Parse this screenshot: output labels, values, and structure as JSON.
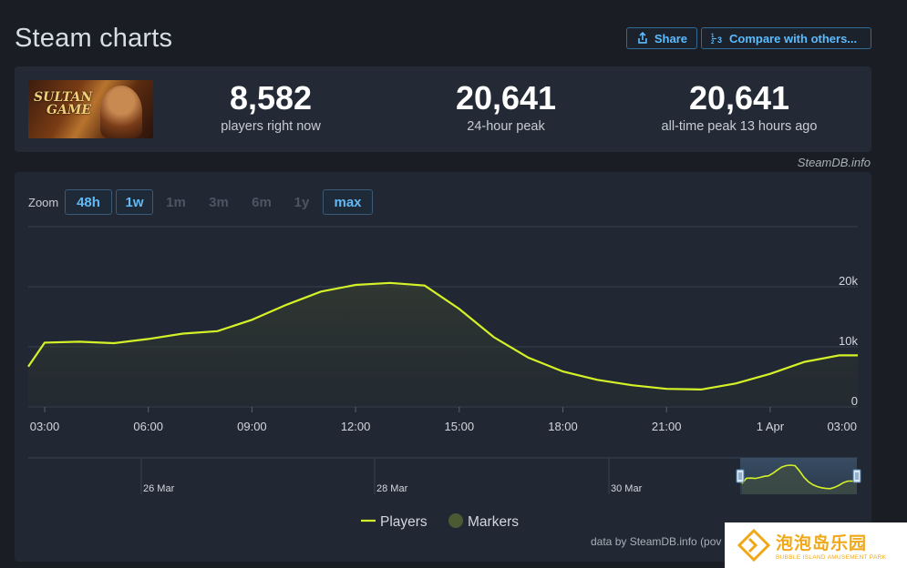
{
  "header": {
    "title": "Steam charts",
    "share_label": "Share",
    "compare_label": "Compare with others..."
  },
  "game_logo_text": [
    "SULTAN",
    "GAME"
  ],
  "stats": [
    {
      "value": "8,582",
      "label": "players right now"
    },
    {
      "value": "20,641",
      "label": "24-hour peak"
    },
    {
      "value": "20,641",
      "label": "all-time peak 13 hours ago"
    }
  ],
  "steamdb_caption": "SteamDB.info",
  "zoom": {
    "label": "Zoom",
    "options": [
      {
        "label": "48h",
        "state": "active"
      },
      {
        "label": "1w",
        "state": "active"
      },
      {
        "label": "1m",
        "state": "disabled"
      },
      {
        "label": "3m",
        "state": "disabled"
      },
      {
        "label": "6m",
        "state": "disabled"
      },
      {
        "label": "1y",
        "state": "disabled"
      },
      {
        "label": "max",
        "state": "active"
      }
    ]
  },
  "chart_data": {
    "type": "area",
    "series": [
      {
        "name": "Players",
        "x": [
          "02:00",
          "03:00",
          "04:00",
          "05:00",
          "06:00",
          "07:00",
          "08:00",
          "09:00",
          "10:00",
          "11:00",
          "12:00",
          "13:00",
          "14:00",
          "15:00",
          "16:00",
          "17:00",
          "18:00",
          "19:00",
          "20:00",
          "21:00",
          "22:00",
          "23:00",
          "00:00",
          "01:00",
          "02:00",
          "03:00",
          "03:45"
        ],
        "values": [
          6700,
          10700,
          10850,
          10600,
          11300,
          12200,
          12600,
          14500,
          17000,
          19200,
          20300,
          20641,
          20200,
          16300,
          11600,
          8200,
          5900,
          4500,
          3600,
          3000,
          2900,
          3900,
          5500,
          7500,
          8582,
          8582,
          8582
        ]
      }
    ],
    "x_tick_labels": [
      "03:00",
      "06:00",
      "09:00",
      "12:00",
      "15:00",
      "18:00",
      "21:00",
      "1 Apr",
      "03:00"
    ],
    "y_tick_labels": [
      "0",
      "10k",
      "20k"
    ],
    "ylim": [
      0,
      30000
    ],
    "grid": true,
    "navigator_labels": [
      "26 Mar",
      "28 Mar",
      "30 Mar"
    ],
    "legend": [
      "Players",
      "Markers"
    ],
    "colors": {
      "line": "#d4f227",
      "markers": "#4a5b34",
      "grid": "#38404c"
    }
  },
  "credit": "data by SteamDB.info (pov",
  "watermark": {
    "cn": "泡泡岛乐园",
    "en": "BUBBLE ISLAND AMUSEMENT PARK"
  }
}
